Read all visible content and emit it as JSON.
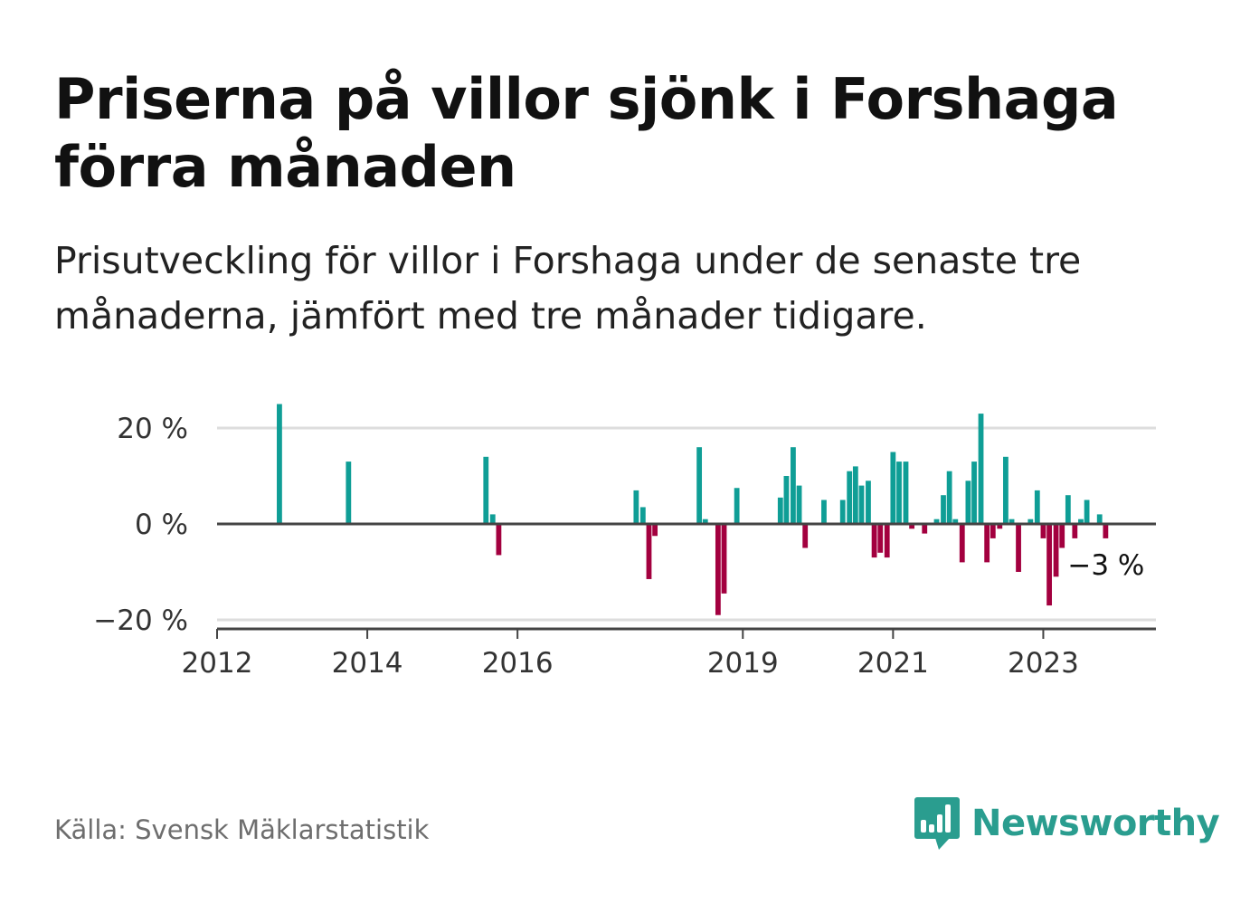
{
  "title": "Priserna på villor sjönk i Forshaga förra månaden",
  "subtitle": "Prisutveckling för villor i Forshaga under de senaste tre månaderna, jämfört med tre månader tidigare.",
  "source": "Källa: Svensk Mäklarstatistik",
  "brand": {
    "name": "Newsworthy",
    "logo_icon": "bar-chart-speech-bubble-icon"
  },
  "colors": {
    "positive": "#0f9e96",
    "negative": "#a3003f",
    "grid": "#dddddd",
    "axis": "#444444",
    "brand": "#2a9d8f"
  },
  "chart_data": {
    "type": "bar",
    "title": "",
    "xlabel": "",
    "ylabel": "",
    "ylim": [
      -22,
      27
    ],
    "y_ticks": [
      {
        "value": 20,
        "label": "20 %"
      },
      {
        "value": 0,
        "label": "0 %"
      },
      {
        "value": -20,
        "label": "−20 %"
      }
    ],
    "x_ticks": [
      {
        "value": 2012.0,
        "label": "2012"
      },
      {
        "value": 2014.0,
        "label": "2014"
      },
      {
        "value": 2016.0,
        "label": "2016"
      },
      {
        "value": 2019.0,
        "label": "2019"
      },
      {
        "value": 2021.0,
        "label": "2021"
      },
      {
        "value": 2023.0,
        "label": "2023"
      }
    ],
    "xlim": [
      2012.0,
      2024.5
    ],
    "grid": "horizontal",
    "last_value_label": "−3 %",
    "series": [
      {
        "x": [
          2012.83,
          2013.75,
          2015.58,
          2015.67,
          2015.75,
          2017.58,
          2017.67,
          2017.75,
          2017.83,
          2018.42,
          2018.5,
          2018.67,
          2018.75,
          2018.92,
          2019.5,
          2019.58,
          2019.67,
          2019.75,
          2019.83,
          2020.08,
          2020.33,
          2020.42,
          2020.5,
          2020.58,
          2020.67,
          2020.75,
          2020.83,
          2020.92,
          2021.0,
          2021.08,
          2021.17,
          2021.25,
          2021.42,
          2021.58,
          2021.67,
          2021.75,
          2021.83,
          2021.92,
          2022.0,
          2022.08,
          2022.17,
          2022.25,
          2022.33,
          2022.42,
          2022.5,
          2022.58,
          2022.67,
          2022.83,
          2022.92,
          2023.0,
          2023.08,
          2023.17,
          2023.25,
          2023.33,
          2023.42,
          2023.5,
          2023.58,
          2023.67,
          2023.75,
          2023.83
        ],
        "values": [
          25,
          13,
          14,
          2,
          -6.5,
          7,
          3.5,
          -11.5,
          -2.5,
          16,
          1,
          -19,
          -14.5,
          7.5,
          5.5,
          10,
          16,
          8,
          -5,
          5,
          5,
          11,
          12,
          8,
          9,
          -7,
          -6,
          -7,
          15,
          13,
          13,
          -1,
          -2,
          1,
          6,
          11,
          1,
          -8,
          9,
          13,
          23,
          -8,
          -3,
          -1,
          14,
          1,
          -10,
          1,
          7,
          -3,
          -17,
          -11,
          -5,
          6,
          -3,
          1,
          5,
          0,
          2,
          -3
        ]
      }
    ]
  }
}
